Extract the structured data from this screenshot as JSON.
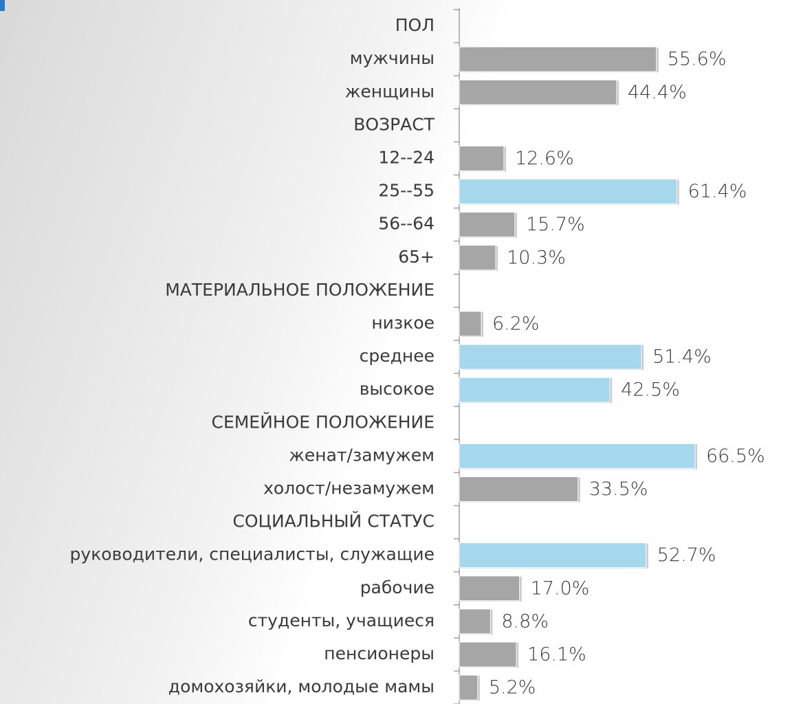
{
  "chart_data": {
    "type": "bar",
    "orientation": "horizontal",
    "categories": [
      "ПОЛ",
      "мужчины",
      "женщины",
      "ВОЗРАСТ",
      "12--24",
      "25--55",
      "56--64",
      "65+",
      "МАТЕРИАЛЬНОЕ ПОЛОЖЕНИЕ",
      "низкое",
      "среднее",
      "высокое",
      "СЕМЕЙНОЕ ПОЛОЖЕНИЕ",
      "женат/замужем",
      "холост/незамужем",
      "СОЦИАЛЬНЫЙ СТАТУС",
      "руководители, специалисты, служащие",
      "рабочие",
      "студенты, учащиеся",
      "пенсионеры",
      "домохозяйки, молодые мамы"
    ],
    "values": [
      null,
      55.6,
      44.4,
      null,
      12.6,
      61.4,
      15.7,
      10.3,
      null,
      6.2,
      51.4,
      42.5,
      null,
      66.5,
      33.5,
      null,
      52.7,
      17.0,
      8.8,
      16.1,
      5.2
    ],
    "value_labels": [
      null,
      "55.6%",
      "44.4%",
      null,
      "12.6%",
      "61.4%",
      "15.7%",
      "10.3%",
      null,
      "6.2%",
      "51.4%",
      "42.5%",
      null,
      "66.5%",
      "33.5%",
      null,
      "52.7%",
      "17.0%",
      "8.8%",
      "16.1%",
      "5.2%"
    ],
    "colors": [
      null,
      "#a6a6a6",
      "#a6a6a6",
      null,
      "#a6a6a6",
      "#a5d8ec",
      "#a6a6a6",
      "#a6a6a6",
      null,
      "#a6a6a6",
      "#a5d8ec",
      "#a5d8ec",
      null,
      "#a5d8ec",
      "#a6a6a6",
      null,
      "#a5d8ec",
      "#a6a6a6",
      "#a6a6a6",
      "#a6a6a6",
      "#a6a6a6"
    ],
    "xlim": [
      0,
      70
    ]
  }
}
